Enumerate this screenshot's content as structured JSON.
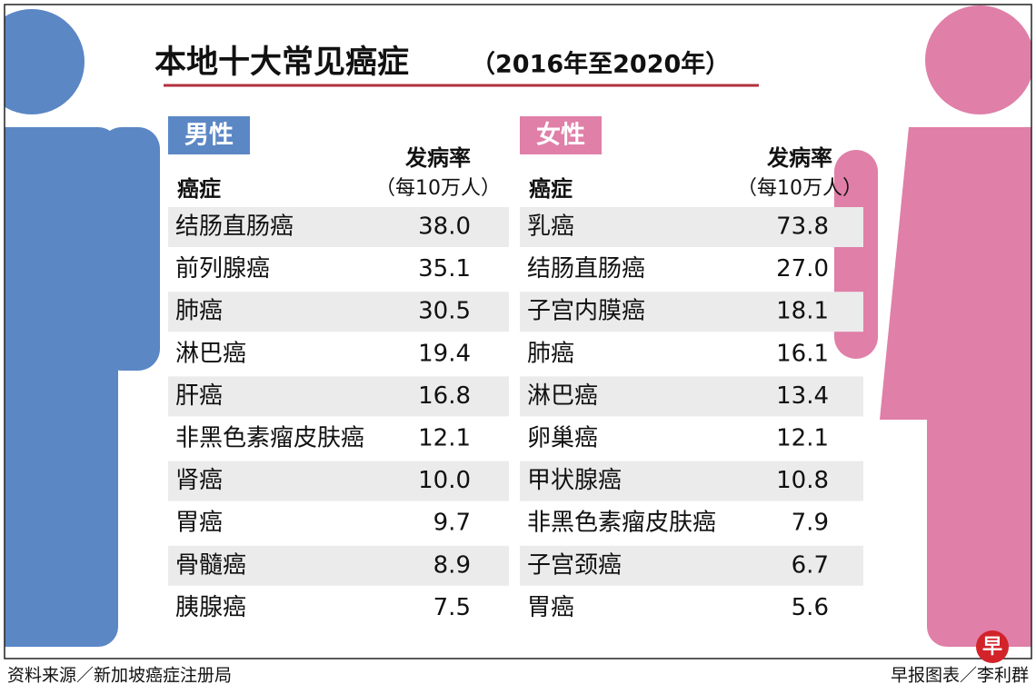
{
  "header": {
    "title": "本地十大常见癌症",
    "subtitle": "（2016年至2020年）"
  },
  "tables": [
    {
      "label": "男性",
      "columns": [
        "癌症",
        "发病率",
        "（每10万人）"
      ],
      "rows": [
        [
          "结肠直肠癌",
          "38.0"
        ],
        [
          "前列腺癌",
          "35.1"
        ],
        [
          "肺癌",
          "30.5"
        ],
        [
          "淋巴癌",
          "19.4"
        ],
        [
          "肝癌",
          "16.8"
        ],
        [
          "非黑色素瘤皮肤癌",
          "12.1"
        ],
        [
          "肾癌",
          "10.0"
        ],
        [
          "胃癌",
          "9.7"
        ],
        [
          "骨髓癌",
          "8.9"
        ],
        [
          "胰腺癌",
          "7.5"
        ]
      ]
    },
    {
      "label": "女性",
      "columns": [
        "癌症",
        "发病率",
        "（每10万人）"
      ],
      "rows": [
        [
          "乳癌",
          "73.8"
        ],
        [
          "结肠直肠癌",
          "27.0"
        ],
        [
          "子宫内膜癌",
          "18.1"
        ],
        [
          "肺癌",
          "16.1"
        ],
        [
          "淋巴癌",
          "13.4"
        ],
        [
          "卵巢癌",
          "12.1"
        ],
        [
          "甲状腺癌",
          "10.8"
        ],
        [
          "非黑色素瘤皮肤癌",
          "7.9"
        ],
        [
          "子宫颈癌",
          "6.7"
        ],
        [
          "胃癌",
          "5.6"
        ]
      ]
    }
  ],
  "footer": {
    "source": "资料来源／新加坡癌症注册局",
    "credit": "早报图表／李利群",
    "logo": "早"
  }
}
